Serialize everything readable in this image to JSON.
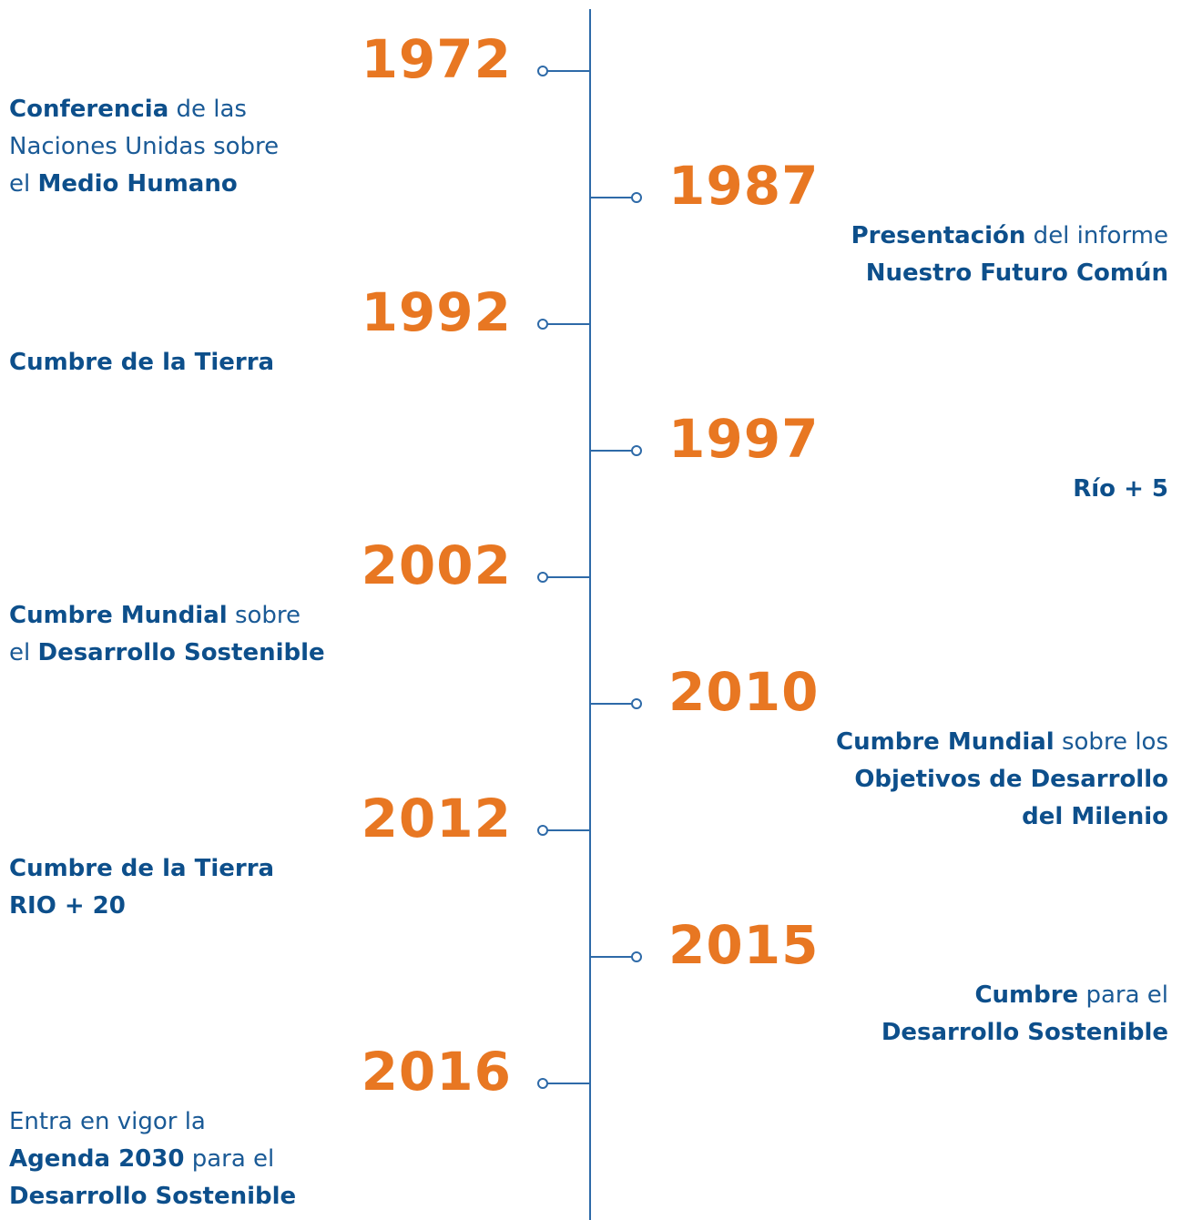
{
  "events": [
    {
      "year": "1972",
      "lines": [
        [
          {
            "text": "Conferencia",
            "bold": true
          },
          {
            "text": " de las",
            "bold": false
          }
        ],
        [
          {
            "text": "Naciones Unidas sobre",
            "bold": false
          }
        ],
        [
          {
            "text": "el ",
            "bold": false
          },
          {
            "text": "Medio Humano",
            "bold": true
          }
        ]
      ]
    },
    {
      "year": "1987",
      "lines": [
        [
          {
            "text": "Presentación",
            "bold": true
          },
          {
            "text": " del informe",
            "bold": false
          }
        ],
        [
          {
            "text": "Nuestro Futuro Común",
            "bold": true
          }
        ]
      ]
    },
    {
      "year": "1992",
      "lines": [
        [
          {
            "text": "Cumbre de la Tierra",
            "bold": true
          }
        ]
      ]
    },
    {
      "year": "1997",
      "lines": [
        [
          {
            "text": "Río + 5",
            "bold": true
          }
        ]
      ]
    },
    {
      "year": "2002",
      "lines": [
        [
          {
            "text": "Cumbre Mundial",
            "bold": true
          },
          {
            "text": " sobre",
            "bold": false
          }
        ],
        [
          {
            "text": "el ",
            "bold": false
          },
          {
            "text": "Desarrollo Sostenible",
            "bold": true
          }
        ]
      ]
    },
    {
      "year": "2010",
      "lines": [
        [
          {
            "text": "Cumbre Mundial",
            "bold": true
          },
          {
            "text": " sobre los",
            "bold": false
          }
        ],
        [
          {
            "text": "Objetivos de Desarrollo",
            "bold": true
          }
        ],
        [
          {
            "text": "del Milenio",
            "bold": true
          }
        ]
      ]
    },
    {
      "year": "2012",
      "lines": [
        [
          {
            "text": "Cumbre de la Tierra",
            "bold": true
          }
        ],
        [
          {
            "text": "RIO + 20",
            "bold": true
          }
        ]
      ]
    },
    {
      "year": "2015",
      "lines": [
        [
          {
            "text": "Cumbre",
            "bold": true
          },
          {
            "text": " para el",
            "bold": false
          }
        ],
        [
          {
            "text": "Desarrollo Sostenible",
            "bold": true
          }
        ]
      ]
    },
    {
      "year": "2016",
      "lines": [
        [
          {
            "text": "Entra en vigor la",
            "bold": false
          }
        ],
        [
          {
            "text": "Agenda 2030",
            "bold": true
          },
          {
            "text": " para el",
            "bold": false
          }
        ],
        [
          {
            "text": "Desarrollo Sostenible",
            "bold": true
          }
        ]
      ]
    }
  ]
}
